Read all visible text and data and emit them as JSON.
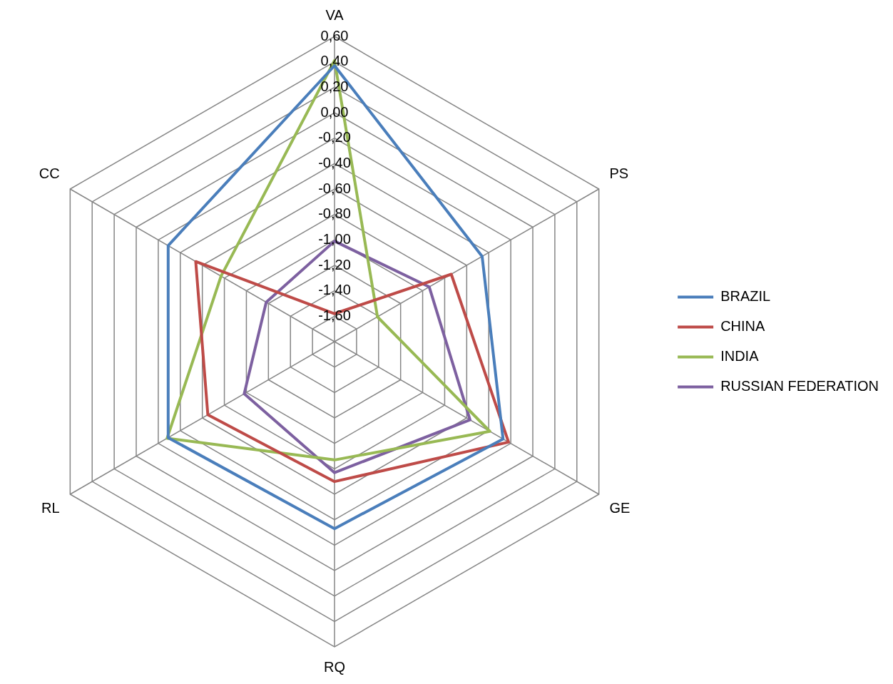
{
  "chart_data": {
    "type": "radar",
    "categories": [
      "VA",
      "PS",
      "GE",
      "RQ",
      "RL",
      "CC"
    ],
    "series": [
      {
        "name": "BRAZIL",
        "color": "#4a7ebb",
        "values": [
          0.37,
          -0.46,
          -0.27,
          -0.33,
          -0.29,
          -0.29
        ]
      },
      {
        "name": "CHINA",
        "color": "#be4b48",
        "values": [
          -1.58,
          -0.74,
          -0.22,
          -0.7,
          -0.65,
          -0.54
        ]
      },
      {
        "name": "INDIA",
        "color": "#98b954",
        "values": [
          0.41,
          -1.41,
          -0.39,
          -0.87,
          -0.28,
          -0.77
        ]
      },
      {
        "name": "RUSSIAN FEDERATION",
        "color": "#7d60a0",
        "values": [
          -1.01,
          -0.94,
          -0.57,
          -0.77,
          -0.98,
          -1.18
        ]
      }
    ],
    "ylim": [
      -1.8,
      0.6
    ],
    "yticks": [
      {
        "value": -1.6,
        "label": "-1,60"
      },
      {
        "value": -1.4,
        "label": "-1,40"
      },
      {
        "value": -1.2,
        "label": "-1,20"
      },
      {
        "value": -1.0,
        "label": "-1,00"
      },
      {
        "value": -0.8,
        "label": "-0,80"
      },
      {
        "value": -0.6,
        "label": "-0,60"
      },
      {
        "value": -0.4,
        "label": "-0,40"
      },
      {
        "value": -0.2,
        "label": "-0,20"
      },
      {
        "value": 0,
        "label": "0,00"
      },
      {
        "value": 0.2,
        "label": "0,20"
      },
      {
        "value": 0.4,
        "label": "0,40"
      },
      {
        "value": 0.6,
        "label": "0,60"
      }
    ],
    "grid": true,
    "legend": "right",
    "marker": "none",
    "line_style": "solid"
  }
}
